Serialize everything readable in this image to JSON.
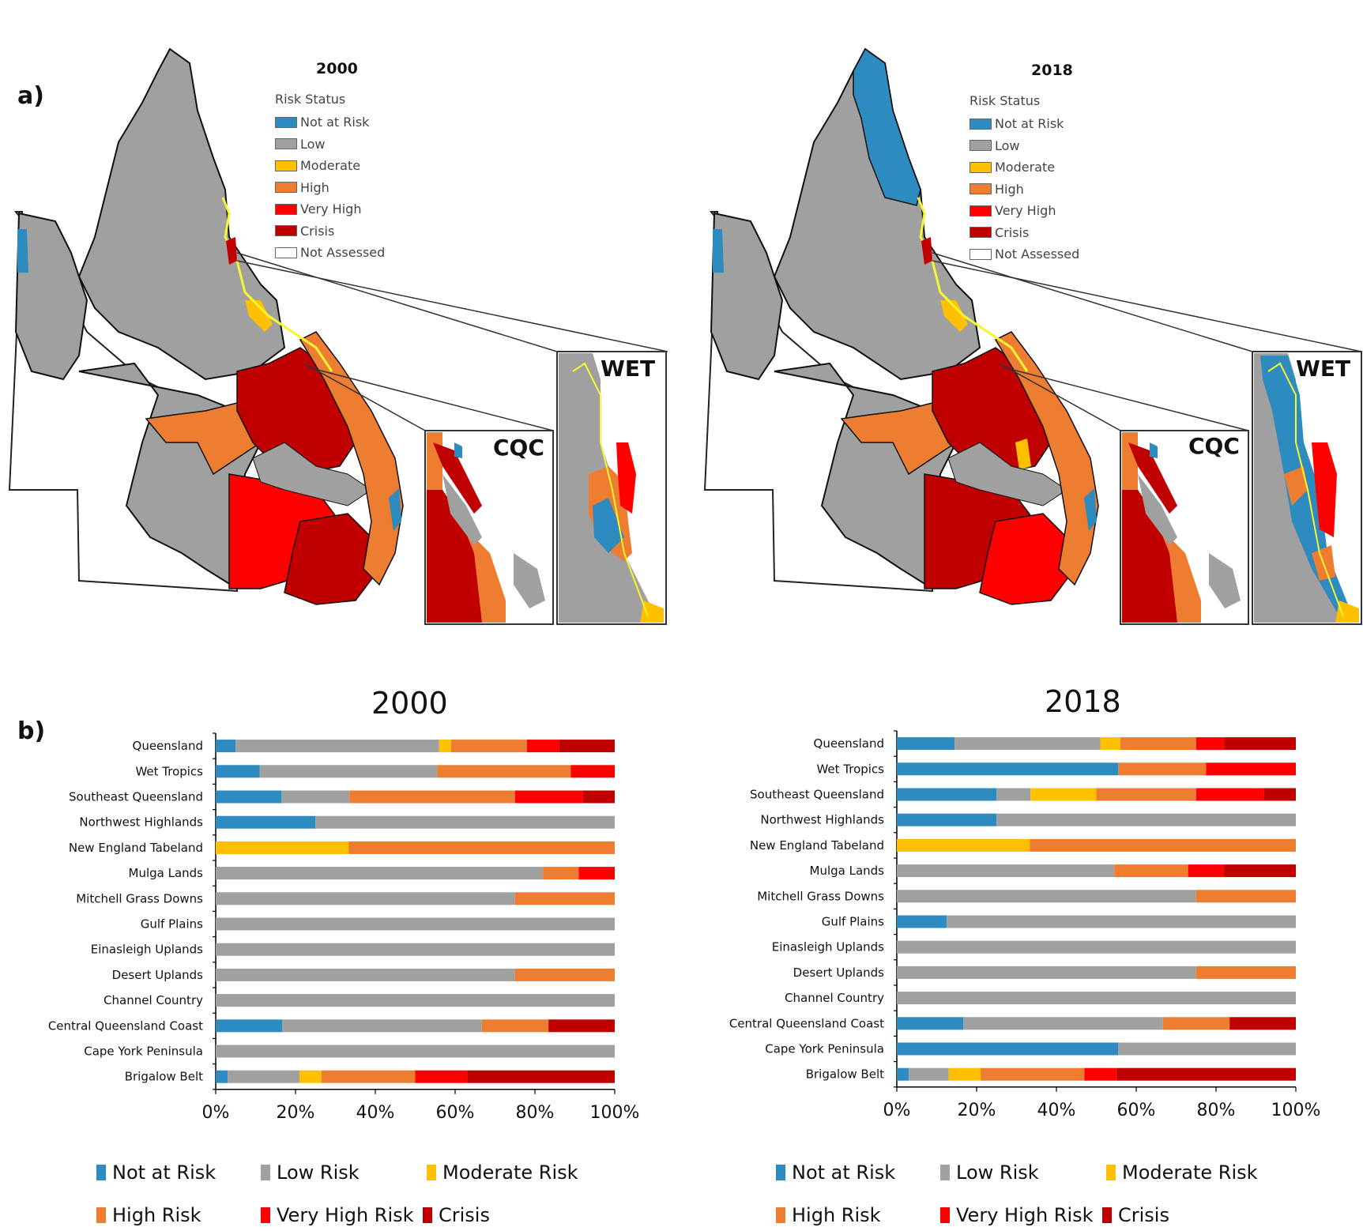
{
  "panel_a_label": "a)",
  "panel_b_label": "b)",
  "colors": {
    "not_at_risk": "#2e8bc0",
    "low": "#a0a0a0",
    "moderate": "#ffc000",
    "high": "#ed7d31",
    "very_high": "#ff0000",
    "crisis": "#c00000",
    "not_assessed": "#ffffff",
    "coast_outline": "#f5f530"
  },
  "maps": [
    {
      "title": "2000",
      "legend_heading": "Risk Status",
      "legend": [
        "Not at Risk",
        "Low",
        "Moderate",
        "High",
        "Very High",
        "Crisis",
        "Not Assessed"
      ],
      "insets": [
        "CQC",
        "WET"
      ]
    },
    {
      "title": "2018",
      "legend_heading": "Risk Status",
      "legend": [
        "Not at Risk",
        "Low",
        "Moderate",
        "High",
        "Very High",
        "Crisis",
        "Not Assessed"
      ],
      "insets": [
        "CQC",
        "WET"
      ]
    }
  ],
  "chart_data": [
    {
      "type": "bar",
      "orientation": "horizontal",
      "stacked": "100%",
      "title": "2000",
      "categories": [
        "Queensland",
        "Wet Tropics",
        "Southeast Queensland",
        "Northwest Highlands",
        "New England Tabeland",
        "Mulga Lands",
        "Mitchell Grass Downs",
        "Gulf Plains",
        "Einasleigh Uplands",
        "Desert Uplands",
        "Channel Country",
        "Central Queensland Coast",
        "Cape York Peninsula",
        "Brigalow Belt"
      ],
      "xticks": [
        "0%",
        "20%",
        "40%",
        "60%",
        "80%",
        "100%"
      ],
      "xlim": [
        0,
        100
      ],
      "legend_position": "bottom",
      "series": [
        {
          "name": "Not at Risk",
          "values": [
            5,
            11,
            16.5,
            25,
            0,
            0,
            0,
            0,
            0,
            0,
            0,
            16.7,
            0,
            3
          ]
        },
        {
          "name": "Low Risk",
          "values": [
            51,
            44.5,
            17,
            75,
            0,
            82,
            75,
            100,
            100,
            75,
            100,
            50,
            100,
            18
          ]
        },
        {
          "name": "Moderate Risk",
          "values": [
            3,
            0,
            0,
            0,
            33.3,
            0,
            0,
            0,
            0,
            0,
            0,
            0,
            0,
            5.5
          ]
        },
        {
          "name": "High Risk",
          "values": [
            19,
            33.5,
            41.5,
            0,
            66.7,
            9,
            25,
            0,
            0,
            25,
            0,
            16.7,
            0,
            23.5
          ]
        },
        {
          "name": "Very High Risk",
          "values": [
            8,
            11,
            17,
            0,
            0,
            9,
            0,
            0,
            0,
            0,
            0,
            0,
            0,
            13
          ]
        },
        {
          "name": "Crisis",
          "values": [
            14,
            0,
            8,
            0,
            0,
            0,
            0,
            0,
            0,
            0,
            0,
            16.6,
            0,
            37
          ]
        }
      ]
    },
    {
      "type": "bar",
      "orientation": "horizontal",
      "stacked": "100%",
      "title": "2018",
      "categories": [
        "Queensland",
        "Wet Tropics",
        "Southeast Queensland",
        "Northwest Highlands",
        "New England Tabeland",
        "Mulga Lands",
        "Mitchell Grass Downs",
        "Gulf Plains",
        "Einasleigh Uplands",
        "Desert Uplands",
        "Channel Country",
        "Central Queensland Coast",
        "Cape York Peninsula",
        "Brigalow Belt"
      ],
      "xticks": [
        "0%",
        "20%",
        "40%",
        "60%",
        "80%",
        "100%"
      ],
      "xlim": [
        0,
        100
      ],
      "legend_position": "bottom",
      "series": [
        {
          "name": "Not at Risk",
          "values": [
            14.5,
            55.5,
            25,
            25,
            0,
            0,
            0,
            12.5,
            0,
            0,
            0,
            16.7,
            55.5,
            3
          ]
        },
        {
          "name": "Low Risk",
          "values": [
            36.5,
            0,
            8.5,
            75,
            0,
            54.5,
            75,
            87.5,
            100,
            75,
            100,
            50,
            44.5,
            10
          ]
        },
        {
          "name": "Moderate Risk",
          "values": [
            5,
            0,
            16.5,
            0,
            33.3,
            0,
            0,
            0,
            0,
            0,
            0,
            0,
            0,
            8
          ]
        },
        {
          "name": "High Risk",
          "values": [
            19,
            22,
            25,
            0,
            66.7,
            18.5,
            25,
            0,
            0,
            25,
            0,
            16.7,
            0,
            26
          ]
        },
        {
          "name": "Very High Risk",
          "values": [
            7,
            22.5,
            17,
            0,
            0,
            9,
            0,
            0,
            0,
            0,
            0,
            0,
            0,
            8
          ]
        },
        {
          "name": "Crisis",
          "values": [
            18,
            0,
            8,
            0,
            0,
            18,
            0,
            0,
            0,
            0,
            0,
            16.6,
            0,
            45
          ]
        }
      ]
    }
  ]
}
